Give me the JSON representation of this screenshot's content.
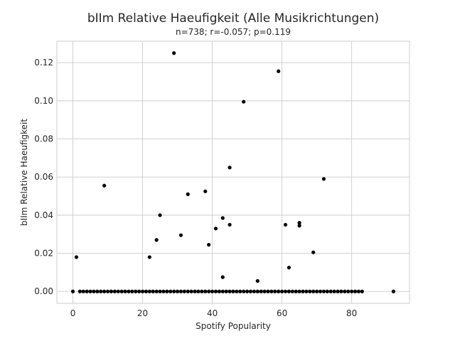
{
  "chart_data": {
    "type": "scatter",
    "title": "bIIm Relative Haeufigkeit (Alle Musikrichtungen)",
    "subtitle": "n=738; r=-0.057; p=0.119",
    "xlabel": "Spotify Popularity",
    "ylabel": "bIIm Relative Haeufigkeit",
    "xlim": [
      -4.6,
      96.6
    ],
    "ylim": [
      -0.00625,
      0.13125
    ],
    "xticks": [
      0,
      20,
      40,
      60,
      80
    ],
    "yticks": [
      0.0,
      0.02,
      0.04,
      0.06,
      0.08,
      0.1,
      0.12
    ],
    "xtick_labels": [
      "0",
      "20",
      "40",
      "60",
      "80"
    ],
    "ytick_labels": [
      "0.00",
      "0.02",
      "0.04",
      "0.06",
      "0.08",
      "0.10",
      "0.12"
    ],
    "grid": true,
    "marker_color": "#000000",
    "points_nonzero": [
      [
        1,
        0.018
      ],
      [
        9,
        0.0555
      ],
      [
        22,
        0.018
      ],
      [
        24,
        0.027
      ],
      [
        25,
        0.04
      ],
      [
        29,
        0.125
      ],
      [
        31,
        0.0295
      ],
      [
        33,
        0.051
      ],
      [
        38,
        0.0525
      ],
      [
        39,
        0.0245
      ],
      [
        41,
        0.033
      ],
      [
        43,
        0.0385
      ],
      [
        43,
        0.0075
      ],
      [
        45,
        0.065
      ],
      [
        45,
        0.035
      ],
      [
        49,
        0.0995
      ],
      [
        53,
        0.0055
      ],
      [
        59,
        0.1155
      ],
      [
        61,
        0.035
      ],
      [
        62,
        0.0125
      ],
      [
        65,
        0.036
      ],
      [
        65,
        0.0345
      ],
      [
        69,
        0.0205
      ],
      [
        72,
        0.059
      ]
    ],
    "zero_x_values": [
      0,
      2,
      3,
      4,
      5,
      6,
      7,
      8,
      9,
      10,
      11,
      12,
      13,
      14,
      15,
      16,
      17,
      18,
      19,
      20,
      21,
      22,
      23,
      24,
      25,
      26,
      27,
      28,
      29,
      30,
      31,
      32,
      33,
      34,
      35,
      36,
      37,
      38,
      39,
      40,
      41,
      42,
      43,
      44,
      45,
      46,
      47,
      48,
      49,
      50,
      51,
      52,
      53,
      54,
      55,
      56,
      57,
      58,
      59,
      60,
      61,
      62,
      63,
      64,
      65,
      66,
      67,
      68,
      69,
      70,
      71,
      72,
      73,
      74,
      75,
      76,
      77,
      78,
      79,
      80,
      81,
      82,
      83,
      92
    ],
    "zero_y_value": 0.0
  }
}
